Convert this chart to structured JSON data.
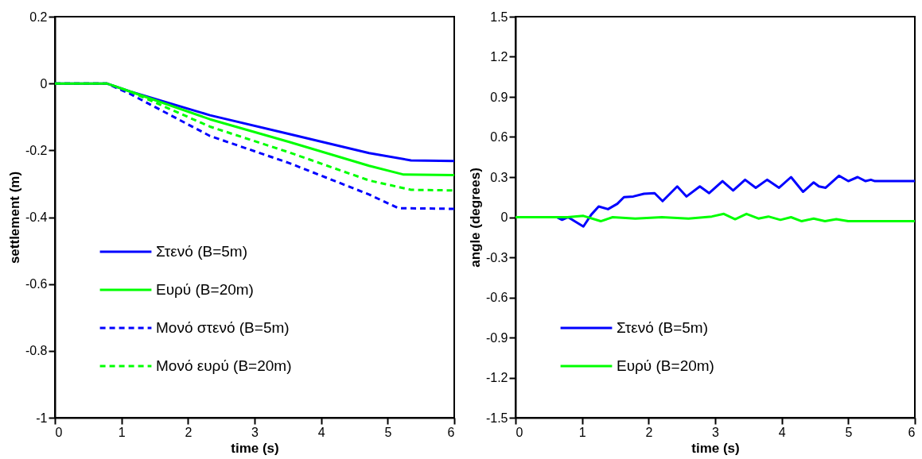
{
  "chart_data": [
    {
      "type": "line",
      "xlabel": "time (s)",
      "ylabel": "settlement (m)",
      "xlim": [
        0,
        6
      ],
      "xticks": [
        0,
        1,
        2,
        3,
        4,
        5,
        6
      ],
      "ylim": [
        -1,
        0.2
      ],
      "yticks": [
        -1,
        -0.8,
        -0.6,
        -0.4,
        -0.2,
        0,
        0.2
      ],
      "legend": "bottom left",
      "grid": false,
      "series": [
        {
          "name": "Στενό (B=5m)",
          "color": "#0000ff",
          "line_style": "solid",
          "x": [
            0,
            0.78,
            1.13,
            2.33,
            3.52,
            4.72,
            5.35,
            6
          ],
          "values": [
            0,
            0,
            -0.024,
            -0.095,
            -0.151,
            -0.208,
            -0.23,
            -0.232
          ]
        },
        {
          "name": "Ευρύ (B=20m)",
          "color": "#00ff00",
          "line_style": "solid",
          "x": [
            0,
            0.78,
            1.13,
            2.33,
            3.52,
            4.72,
            5.23,
            6
          ],
          "values": [
            0,
            0,
            -0.024,
            -0.107,
            -0.175,
            -0.246,
            -0.272,
            -0.274
          ]
        },
        {
          "name": "Μονό στενό (B=5m)",
          "color": "#0000ff",
          "line_style": "dashed",
          "x": [
            0,
            0.78,
            1.13,
            2.33,
            3.52,
            4.72,
            5.16,
            6
          ],
          "values": [
            0,
            0,
            -0.031,
            -0.157,
            -0.238,
            -0.332,
            -0.373,
            -0.375
          ]
        },
        {
          "name": "Μονό ευρύ (B=20m)",
          "color": "#00ff00",
          "line_style": "dashed",
          "x": [
            0,
            0.78,
            1.13,
            2.33,
            3.52,
            4.72,
            5.35,
            6
          ],
          "values": [
            0,
            0,
            -0.024,
            -0.129,
            -0.206,
            -0.29,
            -0.318,
            -0.32
          ]
        }
      ]
    },
    {
      "type": "line",
      "xlabel": "time (s)",
      "ylabel": "angle (degrees)",
      "xlim": [
        0,
        6
      ],
      "xticks": [
        0,
        1,
        2,
        3,
        4,
        5,
        6
      ],
      "ylim": [
        -1.5,
        1.5
      ],
      "yticks": [
        -1.5,
        -1.2,
        -0.9,
        -0.6,
        -0.3,
        0,
        0.3,
        0.6,
        0.9,
        1.2,
        1.5
      ],
      "legend": "bottom left",
      "grid": false,
      "series": [
        {
          "name": "Στενό (B=5m)",
          "color": "#0000ff",
          "line_style": "solid",
          "x": [
            0,
            0.62,
            0.7,
            0.79,
            1.02,
            1.14,
            1.25,
            1.39,
            1.53,
            1.63,
            1.77,
            1.93,
            2.09,
            2.21,
            2.43,
            2.57,
            2.77,
            2.91,
            3.11,
            3.27,
            3.45,
            3.61,
            3.78,
            3.96,
            4.14,
            4.32,
            4.48,
            4.56,
            4.66,
            4.86,
            5.0,
            5.14,
            5.26,
            5.34,
            5.4,
            6
          ],
          "values": [
            0,
            0,
            -0.02,
            0,
            -0.07,
            0.02,
            0.08,
            0.06,
            0.1,
            0.15,
            0.155,
            0.175,
            0.18,
            0.12,
            0.23,
            0.155,
            0.23,
            0.18,
            0.27,
            0.2,
            0.28,
            0.22,
            0.28,
            0.22,
            0.3,
            0.19,
            0.26,
            0.23,
            0.22,
            0.31,
            0.27,
            0.3,
            0.27,
            0.28,
            0.27,
            0.27
          ]
        },
        {
          "name": "Ευρύ (B=20m)",
          "color": "#00ff00",
          "line_style": "solid",
          "x": [
            0,
            0.78,
            1.02,
            1.28,
            1.46,
            1.8,
            2.2,
            2.6,
            2.95,
            3.13,
            3.3,
            3.47,
            3.65,
            3.8,
            3.98,
            4.14,
            4.3,
            4.48,
            4.65,
            4.82,
            5.0,
            6
          ],
          "values": [
            0,
            0,
            0.01,
            -0.03,
            0,
            -0.01,
            0,
            -0.01,
            0.005,
            0.025,
            -0.015,
            0.025,
            -0.01,
            0.005,
            -0.02,
            0,
            -0.03,
            -0.01,
            -0.03,
            -0.015,
            -0.03,
            -0.03
          ]
        }
      ]
    }
  ]
}
